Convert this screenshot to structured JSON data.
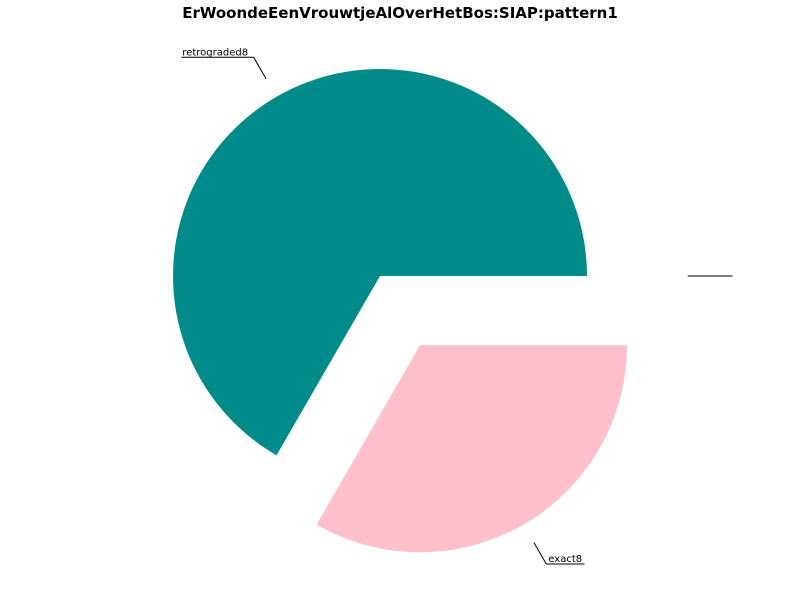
{
  "chart_data": {
    "type": "pie",
    "title": "ErWoondeEenVrouwtjeAlOverHetBos:SIAP:pattern1",
    "slices": [
      {
        "label": "retrograded8",
        "value": 0.6667,
        "color": "#008b8a",
        "exploded": false
      },
      {
        "label": "exact8",
        "value": 0.3333,
        "color": "#ffc0cb",
        "exploded": true
      },
      {
        "label": "",
        "value": 0.0,
        "color": "#ffffff",
        "exploded": true
      }
    ],
    "start_angle_deg": 0,
    "direction": "counterclockwise",
    "legend": "none"
  }
}
